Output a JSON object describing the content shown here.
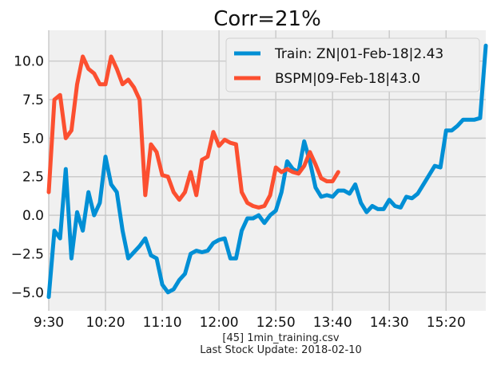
{
  "chart_data": {
    "type": "line",
    "title": "Corr=21%",
    "x_ticks": [
      "9:30",
      "10:20",
      "11:10",
      "12:00",
      "12:50",
      "13:40",
      "14:30",
      "15:20"
    ],
    "y_ticks": [
      "−5.0",
      "−2.5",
      "0.0",
      "2.5",
      "5.0",
      "7.5",
      "10.0"
    ],
    "ylim": [
      -6.2,
      12.0
    ],
    "xlim": [
      "9:30",
      "15:55"
    ],
    "grid": true,
    "legend_position": "top-right",
    "x": [
      "9:30",
      "9:35",
      "9:40",
      "9:45",
      "9:50",
      "9:55",
      "10:00",
      "10:05",
      "10:10",
      "10:15",
      "10:20",
      "10:25",
      "10:30",
      "10:35",
      "10:40",
      "10:45",
      "10:50",
      "10:55",
      "11:00",
      "11:05",
      "11:10",
      "11:15",
      "11:20",
      "11:25",
      "11:30",
      "11:35",
      "11:40",
      "11:45",
      "11:50",
      "11:55",
      "12:00",
      "12:05",
      "12:10",
      "12:15",
      "12:20",
      "12:25",
      "12:30",
      "12:35",
      "12:40",
      "12:45",
      "12:50",
      "12:55",
      "13:00",
      "13:05",
      "13:10",
      "13:15",
      "13:20",
      "13:25",
      "13:30",
      "13:35",
      "13:40",
      "13:45",
      "13:50",
      "13:55",
      "14:00",
      "14:05",
      "14:10",
      "14:15",
      "14:20",
      "14:25",
      "14:30",
      "14:35",
      "14:40",
      "14:45",
      "14:50",
      "14:55",
      "15:00",
      "15:05",
      "15:10",
      "15:15",
      "15:20",
      "15:25",
      "15:30",
      "15:35",
      "15:40",
      "15:45",
      "15:50",
      "15:55"
    ],
    "series": [
      {
        "name": "Train: ZN|01-Feb-18|2.43",
        "color": "#008fd5",
        "values": [
          -5.3,
          -1,
          -1.5,
          3,
          -2.8,
          0.2,
          -1,
          1.5,
          0,
          0.8,
          3.8,
          2,
          1.5,
          -1,
          -2.8,
          -2.4,
          -2,
          -1.5,
          -2.6,
          -2.8,
          -4.5,
          -5,
          -4.8,
          -4.2,
          -3.8,
          -2.5,
          -2.3,
          -2.4,
          -2.3,
          -1.8,
          -1.6,
          -1.5,
          -2.8,
          -2.8,
          -1,
          -0.2,
          -0.2,
          0,
          -0.5,
          0,
          0.3,
          1.5,
          3.5,
          3,
          2.8,
          4.8,
          3.5,
          1.8,
          1.2,
          1.3,
          1.2,
          1.6,
          1.6,
          1.4,
          2,
          0.8,
          0.2,
          0.6,
          0.4,
          0.4,
          1,
          0.6,
          0.5,
          1.2,
          1.1,
          1.4,
          2,
          2.6,
          3.2,
          3.1,
          5.5,
          5.5,
          5.8,
          6.2,
          6.2,
          6.2,
          6.3,
          11
        ]
      },
      {
        "name": "BSPM|09-Feb-18|43.0",
        "color": "#fc4f30",
        "values": [
          1.5,
          7.5,
          7.8,
          5,
          5.5,
          8.5,
          10.3,
          9.5,
          9.2,
          8.5,
          8.5,
          10.3,
          9.5,
          8.5,
          8.8,
          8.3,
          7.5,
          1.3,
          4.6,
          4.1,
          2.6,
          2.5,
          1.5,
          1,
          1.5,
          2.8,
          1.3,
          3.6,
          3.8,
          5.4,
          4.5,
          4.9,
          4.7,
          4.6,
          1.5,
          0.8,
          0.6,
          0.5,
          0.6,
          1.3,
          3.1,
          2.8,
          3,
          2.8,
          2.7,
          3.2,
          4.1,
          3.3,
          2.4,
          2.2,
          2.2,
          2.8,
          null,
          null,
          null,
          null,
          null,
          null,
          null,
          null,
          null,
          null,
          null,
          null,
          null,
          null,
          null,
          null,
          null,
          null,
          null,
          null,
          null,
          null,
          null,
          null,
          null,
          null
        ]
      }
    ]
  },
  "footer": {
    "line1": "[45] 1min_training.csv",
    "line2": "Last Stock Update: 2018-02-10"
  }
}
